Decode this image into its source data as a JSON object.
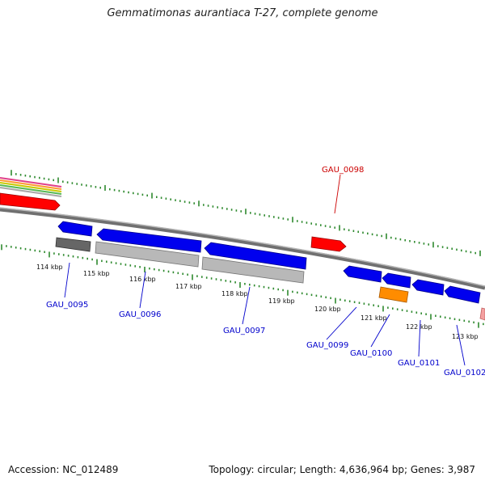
{
  "title": "Gemmatimonas aurantiaca T-27, complete genome",
  "footer": {
    "accession": "Accession: NC_012489",
    "summary": "Topology: circular; Length: 4,636,964 bp; Genes: 3,987"
  },
  "colors": {
    "backbone": "#7a7a7a",
    "tick": "#2f8a2f",
    "forward_gene": "#ff0000",
    "reverse_gene": "#0000ee",
    "gray_gene": "#b8b8b8",
    "dark_gene": "#666666",
    "orange_gene": "#ff8c00",
    "label_blue": "#0000cc",
    "label_red": "#cc0000"
  },
  "ticks": [
    {
      "label": "114 kbp"
    },
    {
      "label": "115 kbp"
    },
    {
      "label": "116 kbp"
    },
    {
      "label": "117 kbp"
    },
    {
      "label": "118 kbp"
    },
    {
      "label": "119 kbp"
    },
    {
      "label": "120 kbp"
    },
    {
      "label": "121 kbp"
    },
    {
      "label": "122 kbp"
    },
    {
      "label": "123 kbp"
    }
  ],
  "gene_labels": [
    {
      "name": "GAU_0095",
      "color": "blue"
    },
    {
      "name": "GAU_0096",
      "color": "blue"
    },
    {
      "name": "GAU_0097",
      "color": "blue"
    },
    {
      "name": "GAU_0098",
      "color": "red"
    },
    {
      "name": "GAU_0099",
      "color": "blue"
    },
    {
      "name": "GAU_0100",
      "color": "blue"
    },
    {
      "name": "GAU_0101",
      "color": "blue"
    },
    {
      "name": "GAU_0102",
      "color": "blue"
    }
  ]
}
